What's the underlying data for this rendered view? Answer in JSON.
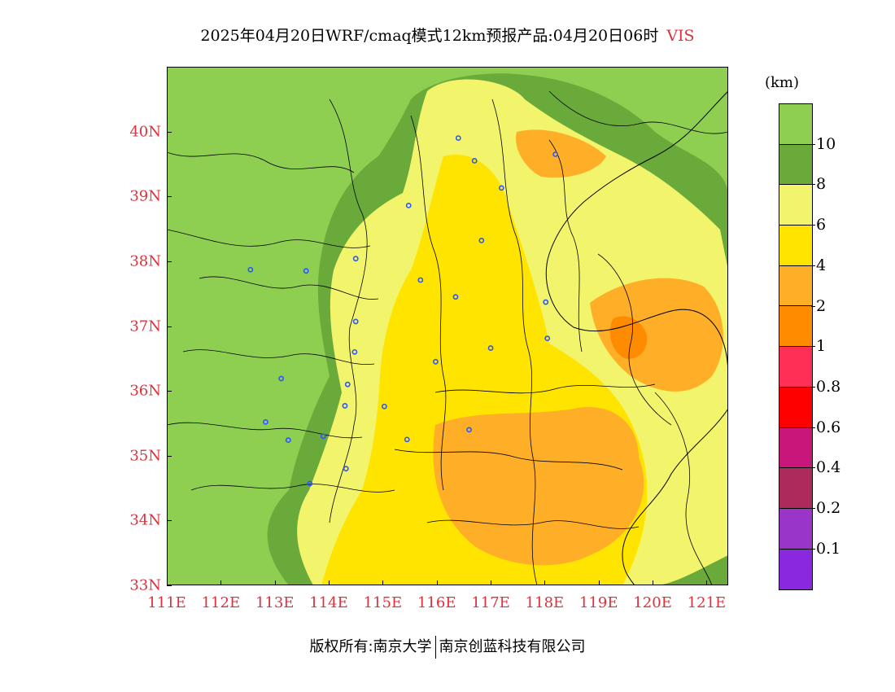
{
  "title": {
    "main": "2025年04月20日WRF/cmaq模式12km预报产品:04月20日06时",
    "variable": "VIS"
  },
  "axes": {
    "lat_labels": [
      "40N",
      "39N",
      "38N",
      "37N",
      "36N",
      "35N",
      "34N",
      "33N"
    ],
    "lat_values": [
      40,
      39,
      38,
      37,
      36,
      35,
      34,
      33
    ],
    "lon_labels": [
      "111E",
      "112E",
      "113E",
      "114E",
      "115E",
      "116E",
      "117E",
      "118E",
      "119E",
      "120E",
      "121E"
    ],
    "lon_values": [
      111,
      112,
      113,
      114,
      115,
      116,
      117,
      118,
      119,
      120,
      121
    ],
    "lat_range": [
      33,
      41
    ],
    "lon_range": [
      111,
      121.4
    ]
  },
  "colorbar": {
    "unit": "(km)",
    "labels": [
      "10",
      "8",
      "6",
      "4",
      "2",
      "1",
      "0.8",
      "0.6",
      "0.4",
      "0.2",
      "0.1"
    ],
    "colors": [
      "#8ecf52",
      "#6aaa3a",
      "#f2f56b",
      "#ffe400",
      "#ffae28",
      "#ff8c00",
      "#ff2f55",
      "#ff0000",
      "#c8167a",
      "#ad2b5c",
      "#9a35c9",
      "#8a28e0"
    ]
  },
  "palette": {
    "vis_gt10": "#8ecf52",
    "vis_8_10": "#6aaa3a",
    "vis_6_8": "#f2f56b",
    "vis_4_6": "#ffe400",
    "vis_2_4": "#ffae28",
    "vis_1_2": "#ff8c00",
    "station": "#2a55ff",
    "label_red": "#e0303a"
  },
  "stations": [
    {
      "lat": 39.9,
      "lon": 116.4
    },
    {
      "lat": 39.55,
      "lon": 116.7
    },
    {
      "lat": 39.13,
      "lon": 117.2
    },
    {
      "lat": 39.65,
      "lon": 118.2
    },
    {
      "lat": 38.86,
      "lon": 115.48
    },
    {
      "lat": 38.32,
      "lon": 116.83
    },
    {
      "lat": 38.04,
      "lon": 114.5
    },
    {
      "lat": 37.87,
      "lon": 112.55
    },
    {
      "lat": 37.85,
      "lon": 113.58
    },
    {
      "lat": 37.71,
      "lon": 115.7
    },
    {
      "lat": 37.45,
      "lon": 116.35
    },
    {
      "lat": 37.37,
      "lon": 118.02
    },
    {
      "lat": 37.07,
      "lon": 114.5
    },
    {
      "lat": 36.81,
      "lon": 118.05
    },
    {
      "lat": 36.66,
      "lon": 117.0
    },
    {
      "lat": 36.6,
      "lon": 114.48
    },
    {
      "lat": 36.45,
      "lon": 115.98
    },
    {
      "lat": 36.19,
      "lon": 113.12
    },
    {
      "lat": 36.1,
      "lon": 114.35
    },
    {
      "lat": 35.77,
      "lon": 114.3
    },
    {
      "lat": 35.76,
      "lon": 115.03
    },
    {
      "lat": 35.52,
      "lon": 112.83
    },
    {
      "lat": 35.4,
      "lon": 116.6
    },
    {
      "lat": 35.3,
      "lon": 113.9
    },
    {
      "lat": 35.24,
      "lon": 113.25
    },
    {
      "lat": 35.25,
      "lon": 115.45
    },
    {
      "lat": 34.8,
      "lon": 114.32
    },
    {
      "lat": 34.57,
      "lon": 113.65
    }
  ],
  "footer": {
    "left": "版权所有:南京大学",
    "right": "南京创蓝科技有限公司"
  }
}
